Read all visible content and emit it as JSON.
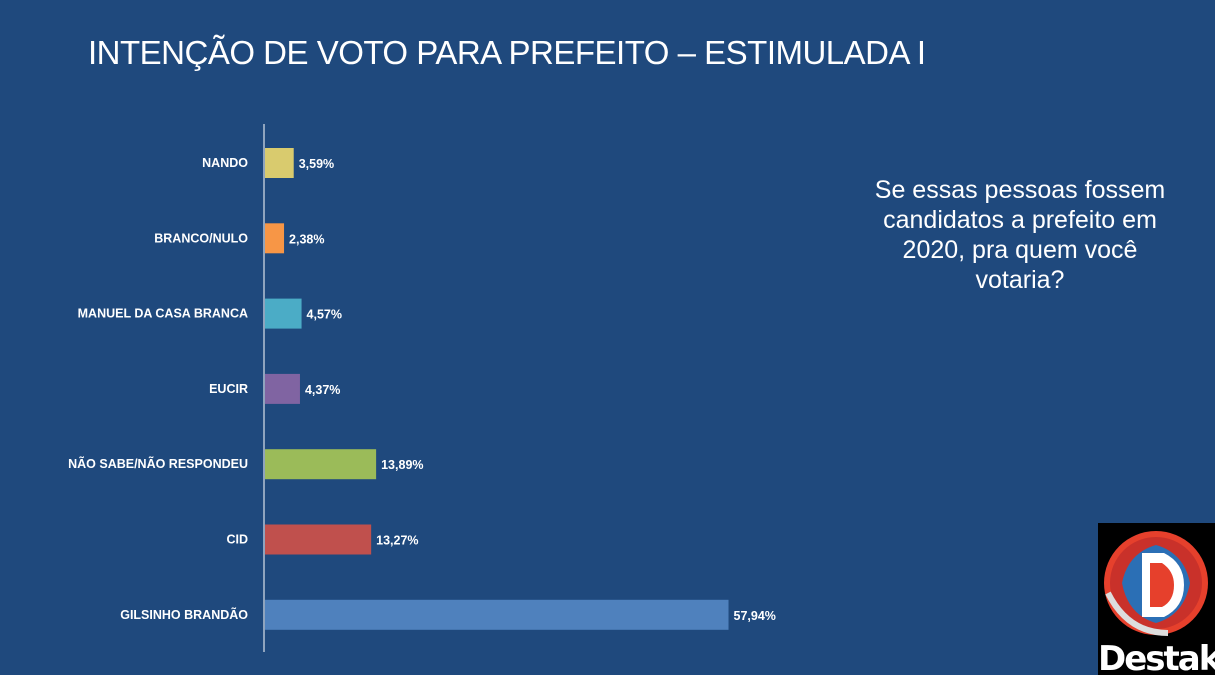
{
  "slide": {
    "title": "INTENÇÃO DE VOTO PARA PREFEITO – ESTIMULADA I",
    "question": "Se essas pessoas fossem candidatos a prefeito em 2020, pra quem você votaria?",
    "logo_text": "Destak"
  },
  "chart_data": {
    "type": "bar",
    "orientation": "horizontal",
    "categories": [
      "NANDO",
      "BRANCO/NULO",
      "MANUEL DA CASA BRANCA",
      "EUCIR",
      "NÃO SABE/NÃO RESPONDEU",
      "CID",
      "GILSINHO BRANDÃO"
    ],
    "values": [
      3.59,
      2.38,
      4.57,
      4.37,
      13.89,
      13.27,
      57.94
    ],
    "value_labels": [
      "3,59%",
      "2,38%",
      "4,57%",
      "4,37%",
      "13,89%",
      "13,27%",
      "57,94%"
    ],
    "colors": [
      "#d9cb6e",
      "#f79646",
      "#4bacc6",
      "#8064a2",
      "#9bbb59",
      "#c0504d",
      "#4f81bd"
    ],
    "xlim": [
      0,
      70
    ],
    "grid": false,
    "legend": "none"
  }
}
